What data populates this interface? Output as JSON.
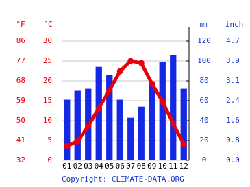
{
  "chart_data": {
    "type": "climate",
    "categories": [
      "01",
      "02",
      "03",
      "04",
      "05",
      "06",
      "07",
      "08",
      "09",
      "10",
      "11",
      "12"
    ],
    "series": [
      {
        "type": "bar",
        "axis": "y2",
        "color": "#1428e6",
        "values": [
          61,
          70,
          72,
          94,
          86,
          61,
          43,
          54,
          79,
          99,
          106,
          72
        ]
      },
      {
        "type": "line",
        "color": "#e8000b",
        "values": [
          3.6,
          4.8,
          8.6,
          13.1,
          17.6,
          22.4,
          25,
          24.5,
          19.3,
          14.8,
          9.3,
          4.0
        ]
      }
    ],
    "ylabel": "°C",
    "ylim": [
      0,
      30
    ],
    "yticks": [
      0,
      5,
      10,
      15,
      20,
      25,
      30
    ],
    "y3label": "°F",
    "y3lim": [
      32,
      86
    ],
    "y3ticks": [
      32,
      41,
      50,
      59,
      68,
      77,
      86
    ],
    "y2label": "mm",
    "y2lim": [
      0,
      120
    ],
    "y2ticks": [
      0,
      20,
      40,
      60,
      80,
      100,
      120
    ],
    "y4label": "inch",
    "y4lim": [
      0,
      4.724
    ],
    "y4ticks": [
      {
        "value": 0,
        "label": "0.0"
      },
      {
        "value": 0.787,
        "label": "0.8"
      },
      {
        "value": 1.575,
        "label": "1.6"
      },
      {
        "value": 2.362,
        "label": "2.4"
      },
      {
        "value": 3.15,
        "label": "3.1"
      },
      {
        "value": 3.937,
        "label": "3.9"
      },
      {
        "value": 4.724,
        "label": "4.7"
      }
    ],
    "grid": true,
    "source": "Copyright: CLIMATE-DATA.ORG"
  }
}
